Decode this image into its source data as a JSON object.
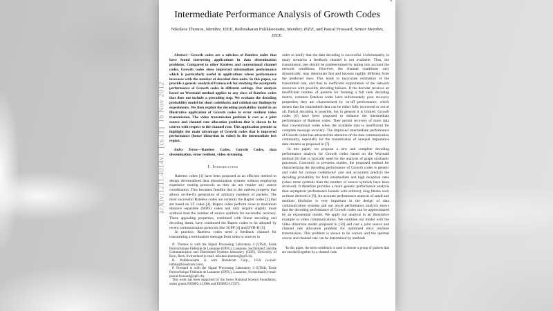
{
  "page": {
    "page_number": "1",
    "watermark": "arXiv:1211.4014v1  [cs.IT]  16 Nov 2012",
    "title": "Intermediate Performance Analysis of Growth Codes",
    "authors_segments": [
      {
        "t": "Nikolaos Thomos, ",
        "i": false
      },
      {
        "t": "Member, IEEE",
        "i": true
      },
      {
        "t": ", Rethnakaran Pulikkoonattu, ",
        "i": false
      },
      {
        "t": "Member, IEEE",
        "i": true
      },
      {
        "t": ", and Pascal Frossard, ",
        "i": false
      },
      {
        "t": "Senior Member, IEEE.",
        "i": true
      }
    ]
  },
  "left_column": {
    "abstract_label": "Abstract",
    "abstract_text": "—Growth codes are a subclass of Rateless codes that have found interesting applications in data dissemination problems. Compared to other Rateless and conventional channel codes, Growth codes show improved intermediate performance which is particularly useful in applications where performance increases with the number of decoded data units. In this paper, we provide a generic analytical framework for studying the asymptotic performance of Growth codes in different settings. Our analysis based on Wormald method applies to any class of Rateless codes that does not include a precoding step. We evaluate the decoding probability model for short codeblocks and validate our findings by experiments. We then exploit the decoding probability model in an illustrative application of Growth codes to error resilient video transmission. The video transmission problem is cast as a joint source and channel rate allocation problem that is shown to be convex with respect to the channel rate. This application permits to highlight the main advantage of Growth codes that is improved performance (hence distortion in video) in the intermediate loss region.",
    "index_terms_label": "Index Terms",
    "index_terms_text": "—Rateless Codes, Growth Codes, data dissemination, error resilient, video streaming.",
    "section_heading": "I. Introduction",
    "para1": "Rateless codes [1] have been proposed as an efficient method to design decentralized data dissemination systems without employing expensive routing protocols as they do not require any source coordination. This becomes feasible due to the rateless property that allows on-the-fly generation of arbitrary numbers of packets. The most successful Rateless codes are certainly the Raptor codes [2] that are based on LT codes [3]. Raptor codes perform close to maximum distance separable (MDS) codes and only require slightly more symbols than the number of source symbols for successful recovery. These appealing properties, combined with linear encoding and decoding times, have conducted the Raptor codes to be adopted by recent communication protocols like 3GPP [4] and DVB-H [5].",
    "para2": "In practice, Rateless codes need a feedback channel for transmitting a termination message from sinks to sources in",
    "footnotes": [
      "N. Thomos is with the Signal Processing Laboratory 4 (LTS4), Ecole Polytechnique Fédérale de Lausanne (EPFL), Lausanne, Switzerland, and the Communication and Distributed Systems laboratory (CDS), University of Bern, Bern, Switzerland (e-mail: nikolaos.thomos@epfl.ch).",
      "R. Pulikkoonattu is with Broadcom Corp., USA (e-mail: rethna@broadcom.com).",
      "P. Frossard is with the Signal Processing Laboratory 4 (LTS4), Ecole Polytechnique Fédérale de Lausanne (EPFL), Lausanne, Switzerland (e-mail: pascal.frossard@epfl.ch).",
      "This work has been supported by the Swiss National Science Foundation, under grants PZ00P2-121906 and PZ00P2-137275."
    ]
  },
  "right_column": {
    "para1": "order to notify that the data decoding is successful. Unfortunately, in many scenarios a feedback channel is not available. Thus, the transmission rate should be predetermined by taking into account the network conditions. However, the channel conditions vary dynamically, may deteriorate fast and become rapidly different from the predicted ones. This leads to inaccurate estimation of the transmitted rate, and thus to inefficient exploitation of the network resources with possibly decoding failures. If the decoder receives an insufficient number of packets for forming a full rank decoding matrix, common Rateless codes have unfortunately poor recovery properties; they are characterized by on-off performance, which means that the transmitted data can be either fully recovered or not at all. Partial decoding is possible, but in general it is limited. Growth codes [6] have been proposed to enhance the intermediate performance of Rateless codes. They permit recovery of more data than conventional codes when the available data is insufficient for complete message recovery. The improved intermediate performance of Growth codes has attracted the attention of the data communication community, especially for the transmission of unequal importance data streams as proposed in [7].",
    "para2": "In this paper, we propose a new and complete decoding performance analysis for Growth codes based on the Wormald method [8] that is typically used for the analysis of graph stochastic processes. Contrarily to previous studies, the proposed method for characterizing the decoding performance of Growth codes is generic and valid for various codeblocks¹ size and accurately predicts the decoding probability for both intermediate and high reception rates (when more symbols than the number of source symbols have been received). It therefore provides a more generic performance analysis than asymptotic performance bounds with arbitrary long blocks such as those derived in [9]. An accurate performance analysis of small and medium blocksize is very important in the design of data communication systems and our novel performance analysis shows that the decoding performance of Growth codes can be approximated by an exponential model. We apply our analysis in an illustrative example in video communications. We combine our model with the video distortion model proposed in [10] and cast a joint source and channel rate allocation problem for optimized error resilient transmission. This problem is shown to be convex and the optimal source and channel rate can be determined by methods",
    "footnote": "¹In this paper, the term codeblock is used to denote a group of packets that are encoded together by a channel code."
  },
  "colors": {
    "page_bg": "#fdfdfd",
    "text": "#1c1c1c",
    "watermark_gray": "#9a9a9a",
    "backdrop_gray": "#d0d0d0"
  }
}
